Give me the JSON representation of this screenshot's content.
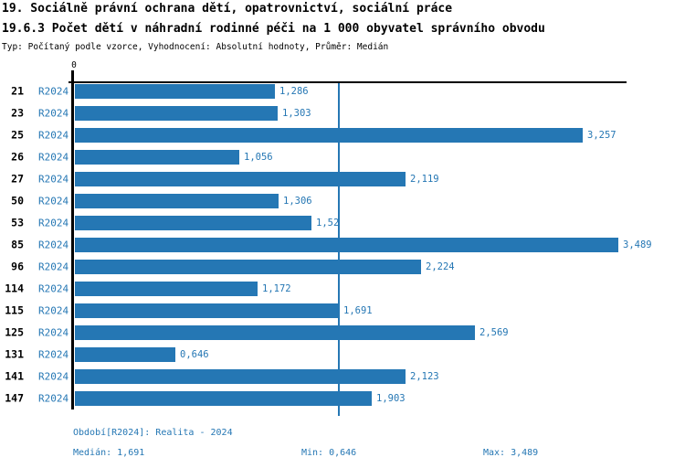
{
  "header": {
    "title_line1": "19. Sociálně právní ochrana dětí, opatrovnictví, sociální práce",
    "title_line2": "19.6.3 Počet dětí v náhradní rodinné péči na 1 000 obyvatel správního obvodu",
    "subtitle": "Typ: Počítaný podle vzorce, Vyhodnocení: Absolutní hodnoty, Průměr: Medián"
  },
  "chart_data": {
    "type": "bar",
    "orientation": "horizontal",
    "title": "19.6.3 Počet dětí v náhradní rodinné péči na 1 000 obyvatel správního obvodu",
    "categories": [
      "21",
      "23",
      "25",
      "26",
      "27",
      "50",
      "53",
      "85",
      "96",
      "114",
      "115",
      "125",
      "131",
      "141",
      "147"
    ],
    "series": [
      {
        "name": "R2024",
        "values": [
          1.286,
          1.303,
          3.257,
          1.056,
          2.119,
          1.306,
          1.52,
          3.489,
          2.224,
          1.172,
          1.691,
          2.569,
          0.646,
          2.123,
          1.903
        ],
        "value_labels": [
          "1,286",
          "1,303",
          "3,257",
          "1,056",
          "2,119",
          "1,306",
          "1,52",
          "3,489",
          "2,224",
          "1,172",
          "1,691",
          "2,569",
          "0,646",
          "2,123",
          "1,903"
        ]
      }
    ],
    "axis_top_label": "0",
    "xlim": [
      0,
      3.54
    ],
    "median_reference_line": 1.691,
    "grid": false,
    "legend_position": "none",
    "bar_color": "#2577b4"
  },
  "footer": {
    "period": "Období[R2024]: Realita - 2024",
    "median": "Medián: 1,691",
    "min": "Min: 0,646",
    "max": "Max: 3,489"
  },
  "colors": {
    "accent": "#2577b4",
    "text": "#000000",
    "background": "#ffffff"
  }
}
